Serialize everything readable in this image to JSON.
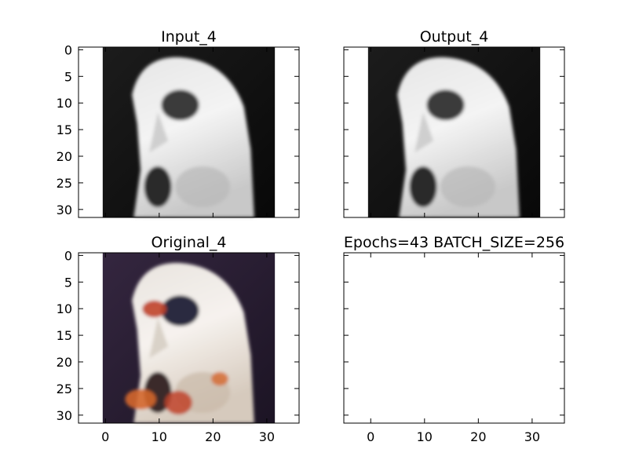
{
  "chart_data": [
    {
      "type": "image",
      "title": "Input_4",
      "image_tone": "grayscale",
      "xlim": [
        -5,
        36
      ],
      "ylim": [
        31.5,
        -0.5
      ],
      "extent": [
        -0.5,
        31.5,
        31.5,
        -0.5
      ],
      "yticks": [
        "0",
        "5",
        "10",
        "15",
        "20",
        "25",
        "30"
      ],
      "xticks": [],
      "colors": {
        "background": "#111111",
        "bird_light": "#f2f2f2",
        "bird_mid": "#b8b8b8",
        "bird_dark": "#3a3a3a"
      }
    },
    {
      "type": "image",
      "title": "Output_4",
      "image_tone": "grayscale",
      "xlim": [
        -5,
        36
      ],
      "ylim": [
        31.5,
        -0.5
      ],
      "extent": [
        -0.5,
        31.5,
        31.5,
        -0.5
      ],
      "yticks": [],
      "xticks": [],
      "colors": {
        "background": "#111111",
        "bird_light": "#f2f2f2",
        "bird_mid": "#b8b8b8",
        "bird_dark": "#3a3a3a"
      }
    },
    {
      "type": "image",
      "title": "Original_4",
      "image_tone": "color",
      "xlim": [
        -5,
        36
      ],
      "ylim": [
        31.5,
        -0.5
      ],
      "extent": [
        -0.5,
        31.5,
        31.5,
        -0.5
      ],
      "yticks": [
        "0",
        "5",
        "10",
        "15",
        "20",
        "25",
        "30"
      ],
      "xticks": [
        "0",
        "10",
        "20",
        "30"
      ],
      "colors": {
        "background": "#2a1f33",
        "bird_light": "#f4efe9",
        "bird_mid": "#c9b9a8",
        "accent_red": "#c0432a",
        "accent_orange": "#d4672c",
        "eye_dark": "#2a2a40"
      }
    },
    {
      "type": "empty",
      "title": "Epochs=43 BATCH_SIZE=256",
      "xlim": [
        -5,
        36
      ],
      "ylim": [
        31.5,
        -0.5
      ],
      "yticks": [],
      "xticks": [
        "0",
        "10",
        "20",
        "30"
      ]
    }
  ]
}
